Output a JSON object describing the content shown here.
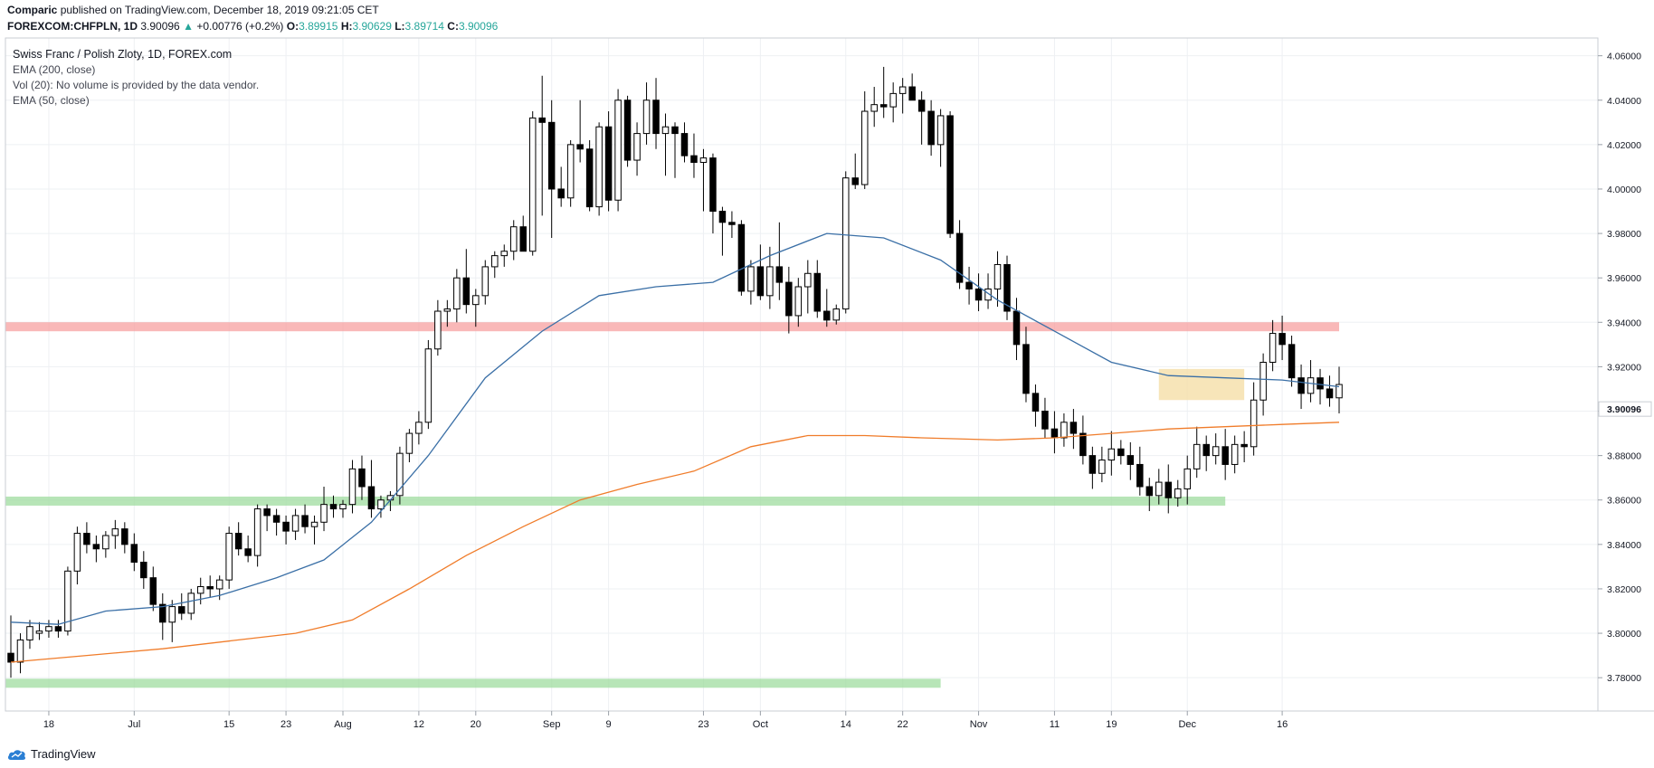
{
  "header": {
    "author": "Comparic",
    "published": "published on TradingView.com, December 18, 2019 09:21:05 CET",
    "symbol": "FOREXCOM:CHFPLN, 1D",
    "last": "3.90096",
    "change_arrow": "▲",
    "change": "+0.00776 (+0.2%)",
    "o_label": "O:",
    "o_value": "3.89915",
    "h_label": "H:",
    "h_value": "3.90629",
    "l_label": "L:",
    "l_value": "3.89714",
    "c_label": "C:",
    "c_value": "3.90096"
  },
  "legend": {
    "title": "Swiss Franc / Polish Zloty, 1D, FOREX.com",
    "items": [
      "EMA (200, close)",
      "Vol (20): No volume is provided by the data vendor.",
      "EMA (50, close)"
    ]
  },
  "footer": {
    "brand": "TradingView",
    "logo_icon": "tradingview-cloud-icon"
  },
  "colors": {
    "up_body": "#ffffff",
    "down_body": "#000000",
    "wick": "#000000",
    "ema50": "#3a6fa6",
    "ema200": "#f07c2a",
    "resistance": "#f7a0a0",
    "support": "#9fdc9f",
    "consolidation": "#f5dfa8",
    "grid": "#eef0f3"
  },
  "chart_data": {
    "type": "candlestick",
    "symbol": "FOREXCOM:CHFPLN",
    "interval": "1D",
    "ylim": [
      3.765,
      4.068
    ],
    "y_ticks": [
      "4.06000",
      "4.04000",
      "4.02000",
      "4.00000",
      "3.98000",
      "3.96000",
      "3.94000",
      "3.92000",
      "3.90000",
      "3.88000",
      "3.86000",
      "3.84000",
      "3.82000",
      "3.80000",
      "3.78000"
    ],
    "last_price_label": "3.90096",
    "x_ticks": [
      {
        "index": 4,
        "label": "18"
      },
      {
        "index": 13,
        "label": "Jul"
      },
      {
        "index": 23,
        "label": "15"
      },
      {
        "index": 29,
        "label": "23"
      },
      {
        "index": 35,
        "label": "Aug"
      },
      {
        "index": 43,
        "label": "12"
      },
      {
        "index": 49,
        "label": "20"
      },
      {
        "index": 57,
        "label": "Sep"
      },
      {
        "index": 63,
        "label": "9"
      },
      {
        "index": 73,
        "label": "23"
      },
      {
        "index": 79,
        "label": "Oct"
      },
      {
        "index": 88,
        "label": "14"
      },
      {
        "index": 94,
        "label": "22"
      },
      {
        "index": 102,
        "label": "Nov"
      },
      {
        "index": 110,
        "label": "11"
      },
      {
        "index": 116,
        "label": "19"
      },
      {
        "index": 124,
        "label": "Dec"
      },
      {
        "index": 134,
        "label": "16"
      }
    ],
    "candles": [
      {
        "o": 3.791,
        "h": 3.808,
        "l": 3.78,
        "c": 3.787
      },
      {
        "o": 3.787,
        "h": 3.8,
        "l": 3.782,
        "c": 3.797
      },
      {
        "o": 3.797,
        "h": 3.806,
        "l": 3.793,
        "c": 3.803
      },
      {
        "o": 3.8,
        "h": 3.805,
        "l": 3.797,
        "c": 3.801
      },
      {
        "o": 3.801,
        "h": 3.806,
        "l": 3.798,
        "c": 3.803
      },
      {
        "o": 3.803,
        "h": 3.806,
        "l": 3.798,
        "c": 3.801
      },
      {
        "o": 3.801,
        "h": 3.83,
        "l": 3.799,
        "c": 3.828
      },
      {
        "o": 3.828,
        "h": 3.848,
        "l": 3.822,
        "c": 3.845
      },
      {
        "o": 3.845,
        "h": 3.85,
        "l": 3.836,
        "c": 3.84
      },
      {
        "o": 3.84,
        "h": 3.844,
        "l": 3.832,
        "c": 3.838
      },
      {
        "o": 3.838,
        "h": 3.846,
        "l": 3.834,
        "c": 3.844
      },
      {
        "o": 3.844,
        "h": 3.851,
        "l": 3.838,
        "c": 3.847
      },
      {
        "o": 3.847,
        "h": 3.85,
        "l": 3.836,
        "c": 3.84
      },
      {
        "o": 3.84,
        "h": 3.845,
        "l": 3.828,
        "c": 3.832
      },
      {
        "o": 3.832,
        "h": 3.837,
        "l": 3.82,
        "c": 3.825
      },
      {
        "o": 3.825,
        "h": 3.83,
        "l": 3.81,
        "c": 3.813
      },
      {
        "o": 3.813,
        "h": 3.818,
        "l": 3.797,
        "c": 3.805
      },
      {
        "o": 3.805,
        "h": 3.815,
        "l": 3.796,
        "c": 3.812
      },
      {
        "o": 3.812,
        "h": 3.818,
        "l": 3.806,
        "c": 3.809
      },
      {
        "o": 3.809,
        "h": 3.82,
        "l": 3.806,
        "c": 3.818
      },
      {
        "o": 3.818,
        "h": 3.825,
        "l": 3.813,
        "c": 3.821
      },
      {
        "o": 3.821,
        "h": 3.826,
        "l": 3.816,
        "c": 3.82
      },
      {
        "o": 3.82,
        "h": 3.826,
        "l": 3.815,
        "c": 3.824
      },
      {
        "o": 3.824,
        "h": 3.848,
        "l": 3.82,
        "c": 3.845
      },
      {
        "o": 3.845,
        "h": 3.85,
        "l": 3.835,
        "c": 3.838
      },
      {
        "o": 3.838,
        "h": 3.844,
        "l": 3.832,
        "c": 3.835
      },
      {
        "o": 3.835,
        "h": 3.858,
        "l": 3.83,
        "c": 3.856
      },
      {
        "o": 3.856,
        "h": 3.858,
        "l": 3.846,
        "c": 3.853
      },
      {
        "o": 3.853,
        "h": 3.856,
        "l": 3.844,
        "c": 3.85
      },
      {
        "o": 3.85,
        "h": 3.853,
        "l": 3.84,
        "c": 3.846
      },
      {
        "o": 3.846,
        "h": 3.856,
        "l": 3.842,
        "c": 3.853
      },
      {
        "o": 3.853,
        "h": 3.858,
        "l": 3.845,
        "c": 3.848
      },
      {
        "o": 3.848,
        "h": 3.853,
        "l": 3.84,
        "c": 3.85
      },
      {
        "o": 3.85,
        "h": 3.866,
        "l": 3.846,
        "c": 3.858
      },
      {
        "o": 3.858,
        "h": 3.862,
        "l": 3.852,
        "c": 3.856
      },
      {
        "o": 3.856,
        "h": 3.86,
        "l": 3.852,
        "c": 3.858
      },
      {
        "o": 3.858,
        "h": 3.878,
        "l": 3.854,
        "c": 3.874
      },
      {
        "o": 3.874,
        "h": 3.88,
        "l": 3.86,
        "c": 3.866
      },
      {
        "o": 3.866,
        "h": 3.878,
        "l": 3.852,
        "c": 3.856
      },
      {
        "o": 3.856,
        "h": 3.862,
        "l": 3.852,
        "c": 3.86
      },
      {
        "o": 3.86,
        "h": 3.864,
        "l": 3.855,
        "c": 3.862
      },
      {
        "o": 3.862,
        "h": 3.884,
        "l": 3.858,
        "c": 3.881
      },
      {
        "o": 3.881,
        "h": 3.892,
        "l": 3.877,
        "c": 3.89
      },
      {
        "o": 3.89,
        "h": 3.9,
        "l": 3.885,
        "c": 3.895
      },
      {
        "o": 3.895,
        "h": 3.932,
        "l": 3.892,
        "c": 3.928
      },
      {
        "o": 3.928,
        "h": 3.95,
        "l": 3.925,
        "c": 3.945
      },
      {
        "o": 3.945,
        "h": 3.95,
        "l": 3.938,
        "c": 3.946
      },
      {
        "o": 3.946,
        "h": 3.964,
        "l": 3.94,
        "c": 3.96
      },
      {
        "o": 3.96,
        "h": 3.973,
        "l": 3.944,
        "c": 3.948
      },
      {
        "o": 3.948,
        "h": 3.955,
        "l": 3.938,
        "c": 3.952
      },
      {
        "o": 3.952,
        "h": 3.968,
        "l": 3.948,
        "c": 3.965
      },
      {
        "o": 3.965,
        "h": 3.972,
        "l": 3.96,
        "c": 3.97
      },
      {
        "o": 3.97,
        "h": 3.975,
        "l": 3.965,
        "c": 3.972
      },
      {
        "o": 3.972,
        "h": 3.986,
        "l": 3.968,
        "c": 3.983
      },
      {
        "o": 3.983,
        "h": 3.988,
        "l": 3.975,
        "c": 3.972
      },
      {
        "o": 3.972,
        "h": 4.035,
        "l": 3.97,
        "c": 4.032
      },
      {
        "o": 4.032,
        "h": 4.051,
        "l": 3.988,
        "c": 4.03
      },
      {
        "o": 4.03,
        "h": 4.04,
        "l": 3.978,
        "c": 4.0
      },
      {
        "o": 4.0,
        "h": 4.01,
        "l": 3.992,
        "c": 3.996
      },
      {
        "o": 3.996,
        "h": 4.022,
        "l": 3.992,
        "c": 4.02
      },
      {
        "o": 4.02,
        "h": 4.04,
        "l": 4.012,
        "c": 4.018
      },
      {
        "o": 4.018,
        "h": 4.022,
        "l": 3.99,
        "c": 3.992
      },
      {
        "o": 3.992,
        "h": 4.03,
        "l": 3.988,
        "c": 4.028
      },
      {
        "o": 4.028,
        "h": 4.035,
        "l": 3.99,
        "c": 3.995
      },
      {
        "o": 3.995,
        "h": 4.045,
        "l": 3.99,
        "c": 4.04
      },
      {
        "o": 4.04,
        "h": 4.042,
        "l": 4.01,
        "c": 4.013
      },
      {
        "o": 4.013,
        "h": 4.03,
        "l": 4.006,
        "c": 4.025
      },
      {
        "o": 4.025,
        "h": 4.048,
        "l": 4.02,
        "c": 4.04
      },
      {
        "o": 4.04,
        "h": 4.05,
        "l": 4.018,
        "c": 4.025
      },
      {
        "o": 4.025,
        "h": 4.034,
        "l": 4.006,
        "c": 4.028
      },
      {
        "o": 4.028,
        "h": 4.03,
        "l": 4.005,
        "c": 4.025
      },
      {
        "o": 4.025,
        "h": 4.03,
        "l": 4.012,
        "c": 4.015
      },
      {
        "o": 4.015,
        "h": 4.025,
        "l": 4.005,
        "c": 4.012
      },
      {
        "o": 4.012,
        "h": 4.018,
        "l": 3.99,
        "c": 4.014
      },
      {
        "o": 4.014,
        "h": 4.016,
        "l": 3.98,
        "c": 3.99
      },
      {
        "o": 3.99,
        "h": 3.992,
        "l": 3.97,
        "c": 3.985
      },
      {
        "o": 3.985,
        "h": 3.99,
        "l": 3.978,
        "c": 3.984
      },
      {
        "o": 3.984,
        "h": 3.986,
        "l": 3.952,
        "c": 3.954
      },
      {
        "o": 3.954,
        "h": 3.968,
        "l": 3.948,
        "c": 3.965
      },
      {
        "o": 3.965,
        "h": 3.975,
        "l": 3.95,
        "c": 3.952
      },
      {
        "o": 3.952,
        "h": 3.974,
        "l": 3.946,
        "c": 3.965
      },
      {
        "o": 3.965,
        "h": 3.985,
        "l": 3.95,
        "c": 3.958
      },
      {
        "o": 3.958,
        "h": 3.965,
        "l": 3.935,
        "c": 3.943
      },
      {
        "o": 3.943,
        "h": 3.96,
        "l": 3.938,
        "c": 3.956
      },
      {
        "o": 3.956,
        "h": 3.968,
        "l": 3.944,
        "c": 3.962
      },
      {
        "o": 3.962,
        "h": 3.968,
        "l": 3.942,
        "c": 3.945
      },
      {
        "o": 3.945,
        "h": 3.955,
        "l": 3.938,
        "c": 3.941
      },
      {
        "o": 3.941,
        "h": 3.948,
        "l": 3.939,
        "c": 3.946
      },
      {
        "o": 3.946,
        "h": 4.008,
        "l": 3.944,
        "c": 4.005
      },
      {
        "o": 4.005,
        "h": 4.016,
        "l": 4.0,
        "c": 4.002
      },
      {
        "o": 4.002,
        "h": 4.044,
        "l": 4.0,
        "c": 4.035
      },
      {
        "o": 4.035,
        "h": 4.046,
        "l": 4.028,
        "c": 4.038
      },
      {
        "o": 4.038,
        "h": 4.055,
        "l": 4.032,
        "c": 4.037
      },
      {
        "o": 4.037,
        "h": 4.048,
        "l": 4.03,
        "c": 4.043
      },
      {
        "o": 4.043,
        "h": 4.05,
        "l": 4.034,
        "c": 4.046
      },
      {
        "o": 4.046,
        "h": 4.052,
        "l": 4.04,
        "c": 4.04
      },
      {
        "o": 4.04,
        "h": 4.044,
        "l": 4.02,
        "c": 4.035
      },
      {
        "o": 4.035,
        "h": 4.04,
        "l": 4.015,
        "c": 4.02
      },
      {
        "o": 4.02,
        "h": 4.036,
        "l": 4.01,
        "c": 4.033
      },
      {
        "o": 4.033,
        "h": 4.035,
        "l": 3.978,
        "c": 3.98
      },
      {
        "o": 3.98,
        "h": 3.986,
        "l": 3.955,
        "c": 3.958
      },
      {
        "o": 3.958,
        "h": 3.965,
        "l": 3.948,
        "c": 3.955
      },
      {
        "o": 3.955,
        "h": 3.962,
        "l": 3.945,
        "c": 3.95
      },
      {
        "o": 3.95,
        "h": 3.962,
        "l": 3.946,
        "c": 3.955
      },
      {
        "o": 3.955,
        "h": 3.972,
        "l": 3.947,
        "c": 3.966
      }
    ],
    "ema50": [
      [
        0,
        3.805
      ],
      [
        5,
        3.804
      ],
      [
        10,
        3.81
      ],
      [
        16,
        3.812
      ],
      [
        22,
        3.817
      ],
      [
        28,
        3.825
      ],
      [
        33,
        3.833
      ],
      [
        38,
        3.85
      ],
      [
        44,
        3.88
      ],
      [
        50,
        3.915
      ],
      [
        56,
        3.936
      ],
      [
        62,
        3.952
      ],
      [
        68,
        3.956
      ],
      [
        74,
        3.958
      ],
      [
        80,
        3.97
      ],
      [
        86,
        3.98
      ],
      [
        92,
        3.978
      ],
      [
        98,
        3.968
      ],
      [
        104,
        3.95
      ],
      [
        110,
        3.936
      ],
      [
        116,
        3.922
      ],
      [
        122,
        3.916
      ],
      [
        128,
        3.915
      ],
      [
        134,
        3.914
      ],
      [
        140,
        3.911
      ]
    ],
    "ema200": [
      [
        0,
        3.787
      ],
      [
        8,
        3.79
      ],
      [
        16,
        3.793
      ],
      [
        24,
        3.797
      ],
      [
        30,
        3.8
      ],
      [
        36,
        3.806
      ],
      [
        42,
        3.82
      ],
      [
        48,
        3.835
      ],
      [
        54,
        3.848
      ],
      [
        60,
        3.86
      ],
      [
        66,
        3.867
      ],
      [
        72,
        3.873
      ],
      [
        78,
        3.884
      ],
      [
        84,
        3.889
      ],
      [
        90,
        3.889
      ],
      [
        96,
        3.888
      ],
      [
        104,
        3.887
      ],
      [
        110,
        3.888
      ],
      [
        116,
        3.89
      ],
      [
        122,
        3.892
      ],
      [
        128,
        3.893
      ],
      [
        134,
        3.894
      ],
      [
        140,
        3.895
      ]
    ],
    "zones": [
      {
        "kind": "resistance",
        "price": 3.938,
        "from": 0,
        "to": 140
      },
      {
        "kind": "support",
        "price": 3.8595,
        "from": 0,
        "to": 128
      },
      {
        "kind": "support",
        "price": 3.7775,
        "from": 0,
        "to": 98
      }
    ],
    "consolidation_box": {
      "from": 121,
      "to": 130,
      "high": 3.919,
      "low": 3.905
    }
  }
}
